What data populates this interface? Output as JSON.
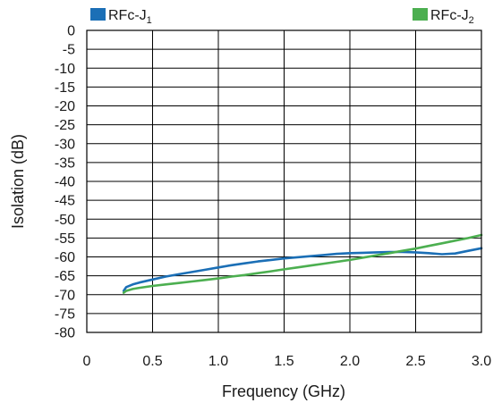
{
  "chart_data": {
    "type": "line",
    "xlabel": "Frequency (GHz)",
    "ylabel": "Isolation (dB)",
    "xlim": [
      0,
      3.0
    ],
    "ylim": [
      -80,
      0
    ],
    "x_ticks": [
      0,
      0.5,
      1.0,
      1.5,
      2.0,
      2.5,
      3.0
    ],
    "x_tick_labels": [
      "0",
      "0.5",
      "1.0",
      "1.5",
      "2.0",
      "2.5",
      "3.0"
    ],
    "y_ticks": [
      0,
      -5,
      -10,
      -15,
      -20,
      -25,
      -30,
      -35,
      -40,
      -45,
      -50,
      -55,
      -60,
      -65,
      -70,
      -75,
      -80
    ],
    "y_tick_labels": [
      "0",
      "-5",
      "-10",
      "-15",
      "-20",
      "-25",
      "-30",
      "-35",
      "-40",
      "-45",
      "-50",
      "-55",
      "-60",
      "-65",
      "-70",
      "-75",
      "-80"
    ],
    "grid": true,
    "legend_position": "top",
    "series": [
      {
        "name": "RFc-J",
        "name_subscript": "1",
        "color": "#1b6fb6",
        "x": [
          0.28,
          0.3,
          0.35,
          0.4,
          0.5,
          0.6,
          0.7,
          0.8,
          0.9,
          1.0,
          1.1,
          1.2,
          1.3,
          1.4,
          1.5,
          1.6,
          1.7,
          1.8,
          1.9,
          2.0,
          2.1,
          2.2,
          2.3,
          2.4,
          2.5,
          2.6,
          2.7,
          2.8,
          2.9,
          3.0
        ],
        "y": [
          -69.0,
          -68.0,
          -67.3,
          -66.8,
          -66.0,
          -65.2,
          -64.6,
          -64.0,
          -63.4,
          -62.8,
          -62.2,
          -61.7,
          -61.2,
          -60.8,
          -60.4,
          -60.1,
          -59.8,
          -59.5,
          -59.2,
          -59.0,
          -58.9,
          -58.8,
          -58.7,
          -58.7,
          -58.8,
          -59.0,
          -59.3,
          -59.1,
          -58.4,
          -57.7
        ]
      },
      {
        "name": "RFc-J",
        "name_subscript": "2",
        "color": "#4caf50",
        "x": [
          0.28,
          0.3,
          0.35,
          0.4,
          0.5,
          0.6,
          0.7,
          0.8,
          0.9,
          1.0,
          1.1,
          1.2,
          1.3,
          1.4,
          1.5,
          1.6,
          1.7,
          1.8,
          1.9,
          2.0,
          2.1,
          2.2,
          2.3,
          2.4,
          2.5,
          2.6,
          2.7,
          2.8,
          2.9,
          3.0
        ],
        "y": [
          -69.5,
          -69.0,
          -68.5,
          -68.2,
          -67.7,
          -67.3,
          -66.9,
          -66.5,
          -66.1,
          -65.7,
          -65.2,
          -64.8,
          -64.3,
          -63.8,
          -63.3,
          -62.8,
          -62.3,
          -61.8,
          -61.3,
          -60.8,
          -60.2,
          -59.6,
          -59.0,
          -58.4,
          -57.8,
          -57.1,
          -56.4,
          -55.7,
          -55.0,
          -54.2
        ]
      }
    ]
  }
}
